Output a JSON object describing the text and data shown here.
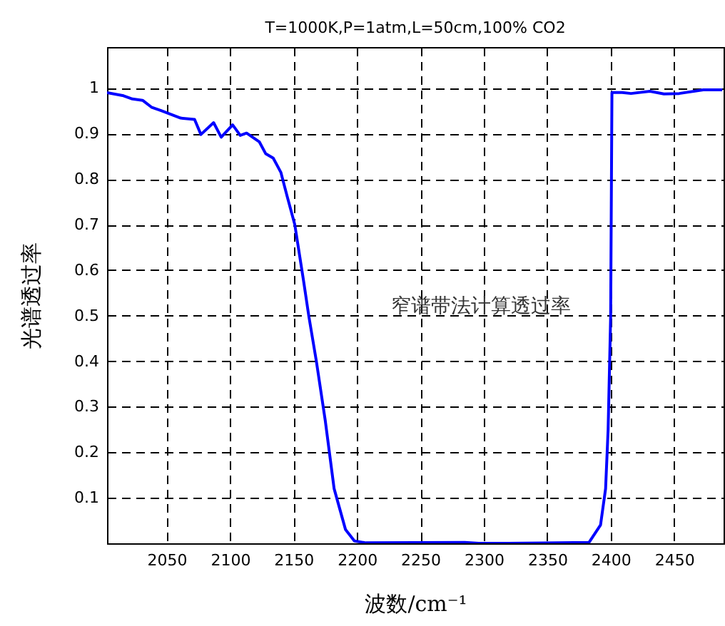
{
  "chart_data": {
    "type": "line",
    "title": "T=1000K,P=1atm,L=50cm,100% CO2",
    "xlabel": "波数/cm⁻¹",
    "ylabel": "光谱透过率",
    "annotations": [
      "窄谱带法计算透过率"
    ],
    "x": [
      2003,
      2016,
      2023,
      2031,
      2038,
      2046,
      2061,
      2072,
      2077,
      2087,
      2093,
      2102,
      2108,
      2113,
      2123,
      2128,
      2134,
      2140,
      2145,
      2151,
      2158,
      2162,
      2168,
      2175,
      2182,
      2191,
      2198,
      2207,
      2285,
      2296,
      2319,
      2383,
      2392,
      2396,
      2398,
      2400,
      2401,
      2409,
      2416,
      2431,
      2442,
      2454,
      2473,
      2488
    ],
    "series": [
      {
        "color": "#0000ff",
        "values": [
          0.99,
          0.983,
          0.976,
          0.973,
          0.958,
          0.95,
          0.934,
          0.931,
          0.898,
          0.924,
          0.892,
          0.919,
          0.896,
          0.901,
          0.882,
          0.856,
          0.846,
          0.815,
          0.762,
          0.7,
          0.575,
          0.5,
          0.4,
          0.27,
          0.12,
          0.03,
          0.005,
          0.001,
          0.002,
          0,
          0,
          0.002,
          0.04,
          0.12,
          0.25,
          0.5,
          0.99,
          0.99,
          0.988,
          0.993,
          0.987,
          0.988,
          0.996,
          0.996
        ]
      }
    ],
    "xlim": [
      2003,
      2489
    ],
    "ylim": [
      0,
      1.09
    ],
    "xticks": [
      2050,
      2100,
      2150,
      2200,
      2250,
      2300,
      2350,
      2400,
      2450
    ],
    "yticks": [
      0.1,
      0.2,
      0.3,
      0.4,
      0.5,
      0.6,
      0.7,
      0.8,
      0.9,
      1
    ],
    "grid": true,
    "line_style": "solid"
  }
}
